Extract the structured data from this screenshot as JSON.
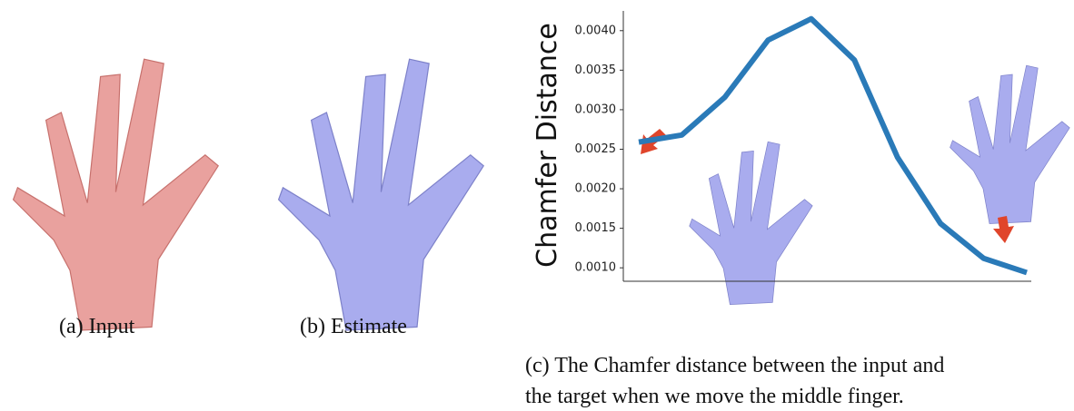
{
  "captions": {
    "a": "(a) Input",
    "b": "(b) Estimate",
    "c": [
      "(c) The Chamfer distance between the input and",
      "the target when we move the middle finger."
    ]
  },
  "chart_data": {
    "type": "line",
    "y_label": "Chamfer Distance",
    "categories": [
      null,
      null,
      null,
      null,
      null,
      null,
      null,
      null,
      null,
      null
    ],
    "series": [
      {
        "name": null,
        "color": "#2a7ab8",
        "values": [
          0.00259,
          0.00268,
          0.00316,
          0.00388,
          0.00415,
          0.00363,
          0.0024,
          0.00156,
          0.00112,
          0.00094
        ]
      }
    ],
    "ylim": [
      0.00083,
      0.00425
    ],
    "yticks": [
      {
        "value": 0.001,
        "label": "0.0010"
      },
      {
        "value": 0.0015,
        "label": "0.0015"
      },
      {
        "value": 0.002,
        "label": "0.0020"
      },
      {
        "value": 0.0025,
        "label": "0.0025"
      },
      {
        "value": 0.003,
        "label": "0.0030"
      },
      {
        "value": 0.0035,
        "label": "0.0035"
      },
      {
        "value": 0.004,
        "label": "0.0040"
      }
    ],
    "grid": false
  }
}
